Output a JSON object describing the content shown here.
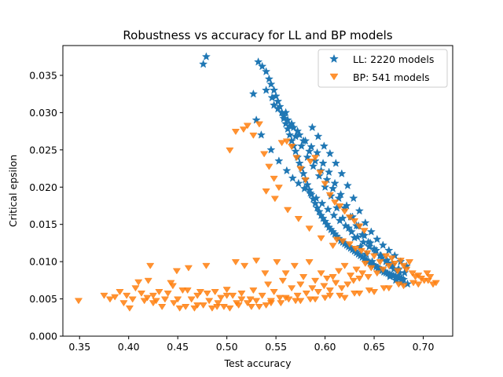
{
  "chart_data": {
    "type": "scatter",
    "title": "Robustness vs accuracy for LL and BP models",
    "xlabel": "Test accuracy",
    "ylabel": "Critical epsilon",
    "xlim": [
      0.333,
      0.73
    ],
    "ylim": [
      0.0,
      0.039
    ],
    "x_ticks": [
      "0.35",
      "0.40",
      "0.45",
      "0.50",
      "0.55",
      "0.60",
      "0.65",
      "0.70"
    ],
    "y_ticks": [
      "0.000",
      "0.005",
      "0.010",
      "0.015",
      "0.020",
      "0.025",
      "0.030",
      "0.035"
    ],
    "grid": false,
    "legend_position": "top-right",
    "series": [
      {
        "name": "LL: 2220 models",
        "marker": "star",
        "color": "#1f77b4",
        "x": [
          0.476,
          0.479,
          0.527,
          0.532,
          0.536,
          0.54,
          0.543,
          0.545,
          0.548,
          0.55,
          0.552,
          0.554,
          0.556,
          0.558,
          0.56,
          0.562,
          0.564,
          0.566,
          0.568,
          0.57,
          0.572,
          0.574,
          0.576,
          0.578,
          0.58,
          0.582,
          0.584,
          0.586,
          0.588,
          0.59,
          0.592,
          0.594,
          0.596,
          0.598,
          0.6,
          0.602,
          0.604,
          0.606,
          0.608,
          0.61,
          0.612,
          0.614,
          0.616,
          0.618,
          0.62,
          0.622,
          0.624,
          0.626,
          0.628,
          0.63,
          0.632,
          0.634,
          0.636,
          0.638,
          0.64,
          0.642,
          0.644,
          0.646,
          0.648,
          0.65,
          0.652,
          0.654,
          0.656,
          0.658,
          0.66,
          0.662,
          0.664,
          0.666,
          0.668,
          0.67,
          0.672,
          0.674,
          0.676,
          0.678,
          0.68,
          0.548,
          0.556,
          0.562,
          0.568,
          0.574,
          0.58,
          0.586,
          0.592,
          0.598,
          0.604,
          0.61,
          0.616,
          0.622,
          0.628,
          0.634,
          0.64,
          0.646,
          0.652,
          0.658,
          0.664,
          0.67,
          0.676,
          0.54,
          0.546,
          0.552,
          0.558,
          0.564,
          0.57,
          0.576,
          0.582,
          0.588,
          0.594,
          0.6,
          0.606,
          0.612,
          0.618,
          0.624,
          0.63,
          0.636,
          0.642,
          0.648,
          0.654,
          0.66,
          0.666,
          0.672,
          0.678,
          0.684,
          0.53,
          0.535,
          0.545,
          0.553,
          0.561,
          0.567,
          0.573,
          0.579,
          0.585,
          0.591,
          0.597,
          0.603,
          0.609,
          0.615,
          0.621,
          0.627,
          0.633,
          0.639,
          0.645,
          0.651,
          0.657,
          0.663,
          0.669,
          0.675,
          0.681,
          0.587,
          0.593,
          0.599,
          0.605,
          0.611,
          0.617,
          0.623,
          0.629,
          0.635,
          0.641,
          0.647,
          0.653,
          0.659,
          0.665,
          0.671,
          0.677,
          0.683,
          0.56,
          0.566,
          0.572,
          0.578,
          0.584,
          0.59,
          0.596,
          0.602,
          0.608,
          0.614,
          0.62,
          0.626,
          0.632,
          0.638,
          0.644,
          0.65,
          0.656,
          0.662,
          0.668,
          0.674
        ],
        "y": [
          0.0365,
          0.0375,
          0.0325,
          0.0368,
          0.0362,
          0.0355,
          0.0345,
          0.0338,
          0.033,
          0.0322,
          0.0315,
          0.0308,
          0.03,
          0.0292,
          0.0285,
          0.0278,
          0.027,
          0.0262,
          0.0255,
          0.0248,
          0.024,
          0.0232,
          0.0225,
          0.0218,
          0.021,
          0.0203,
          0.0196,
          0.019,
          0.0184,
          0.0178,
          0.0172,
          0.0167,
          0.0162,
          0.0158,
          0.0154,
          0.015,
          0.0146,
          0.0143,
          0.014,
          0.0137,
          0.0134,
          0.0131,
          0.0128,
          0.0126,
          0.0124,
          0.0122,
          0.012,
          0.0118,
          0.0116,
          0.0114,
          0.0112,
          0.011,
          0.0108,
          0.0106,
          0.0104,
          0.0102,
          0.01,
          0.0098,
          0.0096,
          0.0095,
          0.0093,
          0.0091,
          0.009,
          0.0088,
          0.0087,
          0.0085,
          0.0084,
          0.0083,
          0.0082,
          0.0081,
          0.008,
          0.0079,
          0.0078,
          0.0077,
          0.0076,
          0.031,
          0.03,
          0.029,
          0.028,
          0.027,
          0.0262,
          0.0254,
          0.0246,
          0.0232,
          0.022,
          0.0205,
          0.019,
          0.0175,
          0.016,
          0.0148,
          0.0135,
          0.0125,
          0.0115,
          0.0105,
          0.0098,
          0.009,
          0.0085,
          0.033,
          0.032,
          0.0305,
          0.0295,
          0.0282,
          0.0268,
          0.0255,
          0.024,
          0.0228,
          0.0215,
          0.02,
          0.0188,
          0.0172,
          0.0158,
          0.0145,
          0.0132,
          0.012,
          0.011,
          0.01,
          0.0092,
          0.0086,
          0.008,
          0.0075,
          0.0072,
          0.007,
          0.029,
          0.027,
          0.025,
          0.0235,
          0.0222,
          0.0212,
          0.0205,
          0.0198,
          0.0192,
          0.0185,
          0.0178,
          0.017,
          0.0162,
          0.0155,
          0.0148,
          0.014,
          0.0133,
          0.0126,
          0.012,
          0.0114,
          0.0108,
          0.0102,
          0.0096,
          0.009,
          0.0085,
          0.028,
          0.0268,
          0.0255,
          0.0245,
          0.0232,
          0.0218,
          0.0202,
          0.0185,
          0.0168,
          0.0152,
          0.014,
          0.013,
          0.0122,
          0.0115,
          0.0108,
          0.01,
          0.0094,
          0.03,
          0.0285,
          0.0275,
          0.0262,
          0.0248,
          0.0235,
          0.0222,
          0.021,
          0.0198,
          0.0185,
          0.0172,
          0.016,
          0.0148,
          0.0136,
          0.0126,
          0.0117,
          0.0108,
          0.01,
          0.0094,
          0.0088
        ]
      },
      {
        "name": "BP: 541 models",
        "marker": "triangle-down",
        "color": "#ff7f0e",
        "x": [
          0.349,
          0.375,
          0.381,
          0.386,
          0.391,
          0.395,
          0.398,
          0.401,
          0.404,
          0.407,
          0.41,
          0.413,
          0.416,
          0.419,
          0.422,
          0.425,
          0.428,
          0.431,
          0.434,
          0.437,
          0.44,
          0.443,
          0.446,
          0.449,
          0.452,
          0.455,
          0.458,
          0.461,
          0.464,
          0.467,
          0.47,
          0.473,
          0.476,
          0.479,
          0.482,
          0.485,
          0.488,
          0.491,
          0.494,
          0.497,
          0.5,
          0.503,
          0.506,
          0.509,
          0.512,
          0.515,
          0.518,
          0.521,
          0.524,
          0.527,
          0.53,
          0.533,
          0.536,
          0.539,
          0.542,
          0.545,
          0.548,
          0.551,
          0.554,
          0.557,
          0.56,
          0.563,
          0.566,
          0.569,
          0.572,
          0.575,
          0.578,
          0.581,
          0.584,
          0.587,
          0.59,
          0.593,
          0.596,
          0.599,
          0.602,
          0.605,
          0.608,
          0.611,
          0.614,
          0.617,
          0.62,
          0.623,
          0.626,
          0.629,
          0.632,
          0.635,
          0.638,
          0.641,
          0.644,
          0.647,
          0.65,
          0.653,
          0.656,
          0.659,
          0.662,
          0.665,
          0.668,
          0.671,
          0.674,
          0.677,
          0.68,
          0.683,
          0.686,
          0.689,
          0.692,
          0.695,
          0.698,
          0.701,
          0.704,
          0.707,
          0.71,
          0.713,
          0.42,
          0.445,
          0.46,
          0.48,
          0.5,
          0.515,
          0.53,
          0.545,
          0.56,
          0.575,
          0.59,
          0.605,
          0.62,
          0.635,
          0.65,
          0.665,
          0.68,
          0.695,
          0.425,
          0.45,
          0.47,
          0.49,
          0.51,
          0.525,
          0.54,
          0.555,
          0.57,
          0.585,
          0.6,
          0.615,
          0.63,
          0.645,
          0.66,
          0.675,
          0.69,
          0.705,
          0.503,
          0.509,
          0.517,
          0.521,
          0.527,
          0.533,
          0.538,
          0.543,
          0.548,
          0.553,
          0.556,
          0.561,
          0.566,
          0.571,
          0.575,
          0.58,
          0.585,
          0.59,
          0.595,
          0.6,
          0.605,
          0.61,
          0.615,
          0.62,
          0.625,
          0.63,
          0.635,
          0.64,
          0.54,
          0.549,
          0.562,
          0.573,
          0.584,
          0.596,
          0.608,
          0.612,
          0.618,
          0.625,
          0.631,
          0.637,
          0.643
        ],
        "y": [
          0.0048,
          0.0055,
          0.005,
          0.0053,
          0.006,
          0.0045,
          0.0055,
          0.0038,
          0.005,
          0.0065,
          0.0073,
          0.0058,
          0.0048,
          0.0052,
          0.0095,
          0.0055,
          0.0048,
          0.006,
          0.004,
          0.005,
          0.0058,
          0.0072,
          0.0045,
          0.0088,
          0.0038,
          0.0062,
          0.004,
          0.0092,
          0.005,
          0.0038,
          0.0055,
          0.006,
          0.0042,
          0.0095,
          0.0048,
          0.0038,
          0.006,
          0.0045,
          0.0052,
          0.004,
          0.0063,
          0.0038,
          0.0055,
          0.01,
          0.0042,
          0.0058,
          0.0095,
          0.0045,
          0.005,
          0.0062,
          0.0102,
          0.004,
          0.0055,
          0.0085,
          0.007,
          0.0048,
          0.006,
          0.01,
          0.0052,
          0.0075,
          0.0085,
          0.005,
          0.0065,
          0.0095,
          0.0055,
          0.007,
          0.008,
          0.0058,
          0.01,
          0.0065,
          0.0075,
          0.006,
          0.0085,
          0.0068,
          0.0078,
          0.0062,
          0.008,
          0.0072,
          0.0088,
          0.0065,
          0.0095,
          0.007,
          0.0082,
          0.0075,
          0.009,
          0.0078,
          0.0085,
          0.0098,
          0.008,
          0.0092,
          0.0108,
          0.0085,
          0.01,
          0.009,
          0.0108,
          0.0095,
          0.0105,
          0.0098,
          0.0088,
          0.0102,
          0.0095,
          0.009,
          0.01,
          0.0085,
          0.008,
          0.0082,
          0.0078,
          0.0075,
          0.0085,
          0.008,
          0.007,
          0.0072,
          0.0075,
          0.0068,
          0.0062,
          0.0058,
          0.0055,
          0.005,
          0.0048,
          0.0045,
          0.0052,
          0.0048,
          0.005,
          0.0055,
          0.0052,
          0.0058,
          0.006,
          0.0065,
          0.0068,
          0.007,
          0.0045,
          0.005,
          0.0042,
          0.004,
          0.0045,
          0.004,
          0.0042,
          0.0045,
          0.0048,
          0.005,
          0.0052,
          0.0055,
          0.0058,
          0.0062,
          0.0065,
          0.007,
          0.0072,
          0.0075,
          0.025,
          0.0275,
          0.0278,
          0.0283,
          0.027,
          0.0285,
          0.0245,
          0.0228,
          0.0212,
          0.02,
          0.026,
          0.0262,
          0.0255,
          0.024,
          0.0225,
          0.021,
          0.0235,
          0.024,
          0.022,
          0.0205,
          0.019,
          0.018,
          0.0175,
          0.0168,
          0.016,
          0.0155,
          0.0148,
          0.0142,
          0.0195,
          0.0185,
          0.017,
          0.0158,
          0.0145,
          0.0132,
          0.0122,
          0.013,
          0.0128,
          0.0124,
          0.0118,
          0.0115,
          0.0112
        ]
      }
    ]
  }
}
